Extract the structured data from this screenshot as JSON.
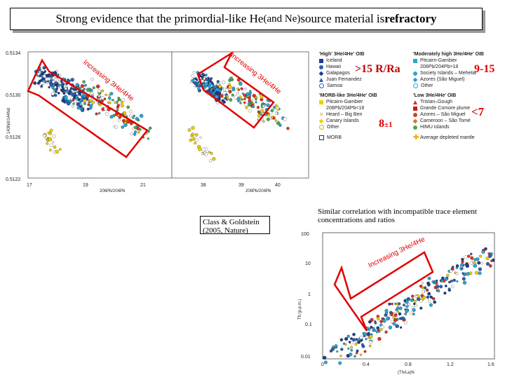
{
  "title": {
    "part1": "Strong evidence that the primordial-like He ",
    "part2": "(and Ne)",
    "part3": " source material is ",
    "bold": "refractory"
  },
  "left_plot": {
    "yticks": [
      "0.5134",
      "0.5130",
      "0.5126",
      "0.5122"
    ],
    "xticks_a": [
      "17",
      "19",
      "21"
    ],
    "xticks_b": [
      "38",
      "39",
      "40"
    ],
    "xlabel_a": "206Pb/204Pb",
    "xlabel_b": "208Pb/204Pb",
    "ylabel": "143Nd/144Nd",
    "arrow_text_a": "Increasing 3He/4He",
    "arrow_text_b": "Increasing 3He/4He"
  },
  "annotations": {
    "high": ">15 R/Ra",
    "mod": "9-15",
    "morb": "8",
    "morb_pm": "±1",
    "low": "<7"
  },
  "legend": {
    "high_head": "'High' 3He/4He' OIB",
    "high_items": [
      "Iceland",
      "Hawaii",
      "Galapagos",
      "Juan Fernandez",
      "Samoa"
    ],
    "morb_head": "'MORB-like 3He/4He' OIB",
    "morb_items": [
      "Pitcairn-Gambier",
      "208Pb/204Pb<18",
      "Heard – Big Ben",
      "Canary Islands",
      "Other"
    ],
    "morb_last": "MORB",
    "mod_head": "'Moderately high 3He/4He' OIB",
    "mod_items": [
      "Pitcairn-Gambier",
      "206Pb/204Pb>18",
      "Society Islands – Mehetia",
      "Azores (São Miguel)",
      "Other"
    ],
    "low_head": "'Low 3He/4He' OIB",
    "low_items": [
      "Tristan–Gough",
      "Grande Comore plume",
      "Azores – São Miguel",
      "Cameroon – São Tomé",
      "HIMU islands"
    ],
    "mantle": "Average depleted mantle"
  },
  "citation": "Class & Goldstein (2005, Nature)",
  "note": "Similar correlation with incompatible trace element concentrations and ratios",
  "right_plot": {
    "yticks": [
      "100",
      "10",
      "1",
      "0.1",
      "0.01"
    ],
    "xticks": [
      "0",
      "0.4",
      "0.8",
      "1.2",
      "1.6"
    ],
    "ylabel": "Th (p.p.m.)",
    "xlabel": "(Th/La)N",
    "arrow_text": "Increasing 3He/4He"
  },
  "colors": {
    "red": "#e00000",
    "iceland": "#1f3c8c",
    "hawaii": "#2c5fb0",
    "cyan": "#29a6d6",
    "yellow": "#f0d000",
    "green": "#4aa84a"
  }
}
